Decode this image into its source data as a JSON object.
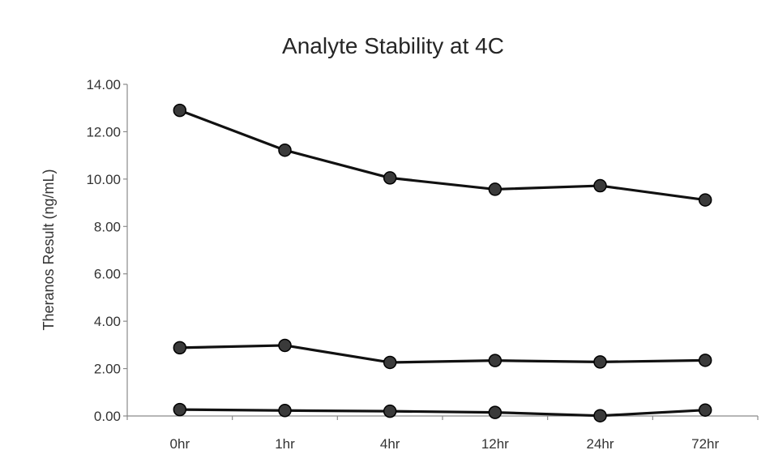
{
  "chart_data": {
    "type": "line",
    "title": "Analyte Stability at 4C",
    "xlabel": "",
    "ylabel": "Theranos Result (ng/mL)",
    "categories": [
      "0hr",
      "1hr",
      "4hr",
      "12hr",
      "24hr",
      "72hr"
    ],
    "ylim": [
      0,
      14
    ],
    "yticks": [
      "0.00",
      "2.00",
      "4.00",
      "6.00",
      "8.00",
      "10.00",
      "12.00",
      "14.00"
    ],
    "grid": false,
    "legend": "none",
    "series": [
      {
        "values": [
          12.9,
          11.22,
          10.05,
          9.57,
          9.72,
          9.12
        ]
      },
      {
        "values": [
          2.88,
          2.98,
          2.26,
          2.34,
          2.28,
          2.35
        ]
      },
      {
        "values": [
          0.27,
          0.23,
          0.2,
          0.15,
          0.01,
          0.25
        ]
      }
    ],
    "colors": {
      "line": "#111111",
      "marker": "#3a3a3a",
      "axis": "#8a8a8a"
    }
  }
}
